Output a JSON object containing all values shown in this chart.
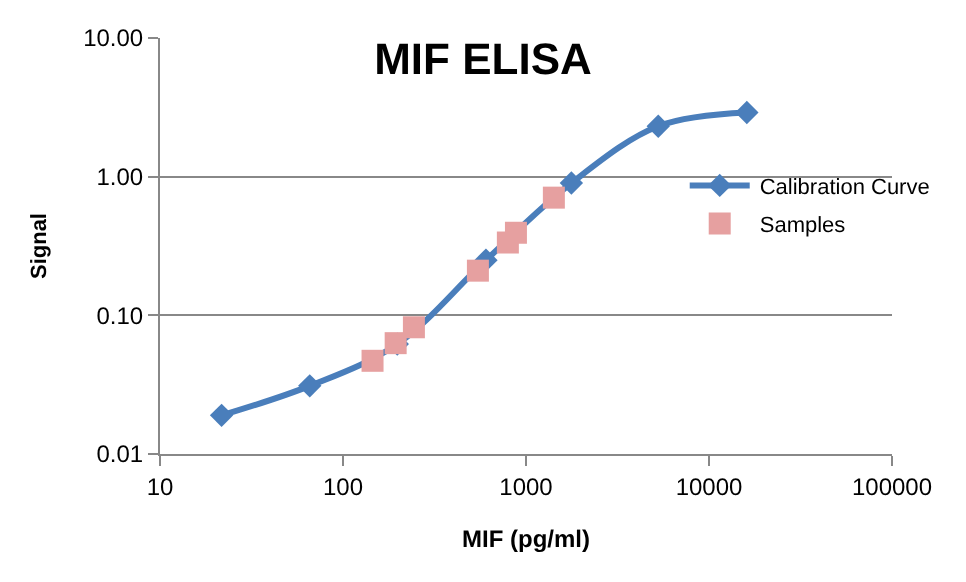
{
  "chart_data": {
    "type": "line",
    "title": "MIF ELISA",
    "xlabel": "MIF (pg/ml)",
    "ylabel": "Signal",
    "series": [
      {
        "name": "Calibration Curve",
        "color": "#4a7ebb",
        "marker": "diamond",
        "x": [
          21.7,
          65.8,
          198,
          604,
          1770,
          5280,
          16100
        ],
        "values": [
          0.019,
          0.031,
          0.062,
          0.25,
          0.9,
          2.31,
          2.9
        ]
      },
      {
        "name": "Samples",
        "type": "scatter",
        "color": "#e6a0a0",
        "marker": "square",
        "x": [
          145,
          194,
          244,
          546,
          796,
          881,
          1420
        ],
        "values": [
          0.047,
          0.063,
          0.082,
          0.21,
          0.335,
          0.394,
          0.706
        ]
      }
    ],
    "log": "xy",
    "xlim": [
      10,
      100000
    ],
    "xticks": [
      10,
      100,
      1000,
      10000,
      100000
    ],
    "ylim": [
      0.01,
      10
    ],
    "yticks": [
      {
        "value": 0.01,
        "label": "0.01"
      },
      {
        "value": 0.1,
        "label": "0.10"
      },
      {
        "value": 1,
        "label": "1.00"
      },
      {
        "value": 10,
        "label": "10.00"
      }
    ],
    "grid": "y",
    "legend": "right"
  }
}
